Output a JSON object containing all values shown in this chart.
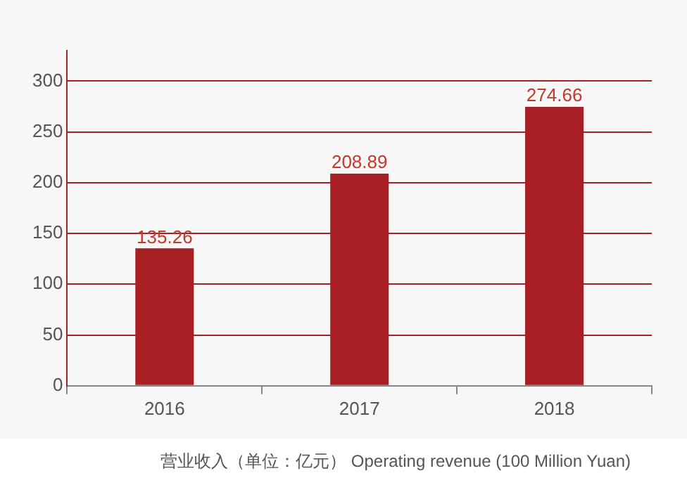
{
  "chart_data": {
    "type": "bar",
    "categories": [
      "2016",
      "2017",
      "2018"
    ],
    "values": [
      135.26,
      208.89,
      274.66
    ],
    "color": "#a81f24",
    "ylim": [
      0,
      330
    ],
    "yticks": [
      0,
      50,
      100,
      150,
      200,
      250,
      300
    ],
    "grid": "y",
    "data_labels": true,
    "legend": false,
    "annotations": [
      "营业收入（单位：亿元）  Operating revenue (100 Million Yuan)"
    ]
  }
}
